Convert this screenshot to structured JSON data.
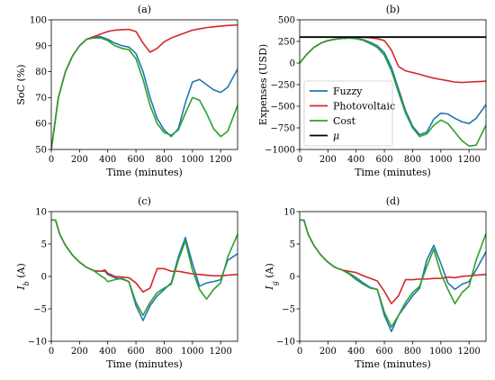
{
  "colors": {
    "Fuzzy": "#1f77b4",
    "Photovoltaic": "#d62728",
    "Cost": "#2ca02c",
    "mu": "#000000"
  },
  "chart_data": [
    {
      "type": "line",
      "title": "(a)",
      "xlabel": "Time (minutes)",
      "ylabel": "SoC (%)",
      "xlim": [
        0,
        1320
      ],
      "ylim": [
        50,
        100
      ],
      "xticks": [
        0,
        200,
        400,
        600,
        800,
        1000,
        1200
      ],
      "yticks": [
        50,
        60,
        70,
        80,
        90,
        100
      ],
      "grid": false,
      "series": [
        {
          "name": "Fuzzy",
          "x": [
            0,
            50,
            100,
            150,
            200,
            250,
            300,
            350,
            400,
            450,
            500,
            550,
            600,
            650,
            700,
            750,
            800,
            850,
            900,
            950,
            1000,
            1050,
            1100,
            1150,
            1200,
            1250,
            1320
          ],
          "y": [
            50,
            70,
            80,
            86,
            90,
            92.5,
            93.5,
            93.5,
            92.5,
            91,
            90,
            89.5,
            87,
            80,
            70,
            62,
            57.5,
            55,
            58,
            68,
            76,
            77,
            75,
            73,
            72,
            74,
            81
          ]
        },
        {
          "name": "Photovoltaic",
          "x": [
            0,
            50,
            100,
            150,
            200,
            250,
            300,
            350,
            400,
            450,
            500,
            550,
            600,
            650,
            700,
            750,
            800,
            850,
            900,
            950,
            1000,
            1050,
            1100,
            1150,
            1200,
            1250,
            1320
          ],
          "y": [
            50,
            70,
            80,
            86,
            90,
            92.5,
            93.5,
            94.5,
            95.5,
            96,
            96.2,
            96.3,
            95.5,
            91,
            87.5,
            89,
            91.5,
            93,
            94,
            95,
            96,
            96.5,
            97,
            97.3,
            97.6,
            97.8,
            98
          ]
        },
        {
          "name": "Cost",
          "x": [
            0,
            50,
            100,
            150,
            200,
            250,
            300,
            350,
            400,
            450,
            500,
            550,
            600,
            650,
            700,
            750,
            800,
            850,
            900,
            950,
            1000,
            1050,
            1100,
            1150,
            1200,
            1250,
            1320
          ],
          "y": [
            50,
            70,
            80,
            86,
            90,
            92.5,
            93,
            93,
            92,
            90,
            89,
            88.5,
            85,
            77,
            67,
            60,
            56.5,
            55.5,
            57.5,
            64,
            70,
            69,
            64,
            58,
            55,
            57,
            67
          ]
        }
      ]
    },
    {
      "type": "line",
      "title": "(b)",
      "xlabel": "Time (minutes)",
      "ylabel": "Expenses (USD)",
      "xlim": [
        0,
        1320
      ],
      "ylim": [
        -1000,
        500
      ],
      "xticks": [
        0,
        200,
        400,
        600,
        800,
        1000,
        1200
      ],
      "yticks": [
        -1000,
        -750,
        -500,
        -250,
        0,
        250,
        500
      ],
      "grid": false,
      "legend": {
        "placement": "center-left",
        "entries": [
          "Fuzzy",
          "Photovoltaic",
          "Cost",
          "μ"
        ]
      },
      "series": [
        {
          "name": "Fuzzy",
          "x": [
            0,
            50,
            100,
            150,
            200,
            250,
            300,
            350,
            400,
            450,
            500,
            550,
            600,
            650,
            700,
            750,
            800,
            850,
            900,
            950,
            1000,
            1050,
            1100,
            1150,
            1200,
            1250,
            1320
          ],
          "y": [
            0,
            100,
            180,
            230,
            260,
            275,
            285,
            290,
            285,
            270,
            240,
            200,
            120,
            -50,
            -300,
            -550,
            -730,
            -830,
            -800,
            -650,
            -580,
            -590,
            -640,
            -680,
            -700,
            -640,
            -480
          ]
        },
        {
          "name": "Photovoltaic",
          "x": [
            0,
            50,
            100,
            150,
            200,
            250,
            300,
            350,
            400,
            450,
            500,
            550,
            600,
            650,
            700,
            750,
            800,
            850,
            900,
            950,
            1000,
            1050,
            1100,
            1150,
            1200,
            1250,
            1320
          ],
          "y": [
            0,
            100,
            180,
            230,
            260,
            275,
            285,
            292,
            298,
            298,
            292,
            282,
            260,
            150,
            -40,
            -90,
            -110,
            -130,
            -155,
            -175,
            -190,
            -205,
            -220,
            -225,
            -220,
            -215,
            -210
          ]
        },
        {
          "name": "Cost",
          "x": [
            0,
            50,
            100,
            150,
            200,
            250,
            300,
            350,
            400,
            450,
            500,
            550,
            600,
            650,
            700,
            750,
            800,
            850,
            900,
            950,
            1000,
            1050,
            1100,
            1150,
            1200,
            1250,
            1320
          ],
          "y": [
            0,
            100,
            180,
            230,
            260,
            275,
            285,
            290,
            282,
            262,
            225,
            180,
            90,
            -90,
            -340,
            -580,
            -750,
            -850,
            -820,
            -720,
            -660,
            -700,
            -800,
            -900,
            -960,
            -950,
            -720
          ]
        },
        {
          "name": "μ",
          "x": [
            0,
            1320
          ],
          "y": [
            300,
            300
          ]
        }
      ]
    },
    {
      "type": "line",
      "title": "(c)",
      "xlabel": "Time (minutes)",
      "ylabel": "I_b (A)",
      "xlim": [
        0,
        1320
      ],
      "ylim": [
        -10,
        10
      ],
      "xticks": [
        0,
        200,
        400,
        600,
        800,
        1000,
        1200
      ],
      "yticks": [
        -10,
        -5,
        0,
        5,
        10
      ],
      "grid": false,
      "series": [
        {
          "name": "Fuzzy",
          "x": [
            0,
            30,
            60,
            100,
            150,
            200,
            250,
            300,
            350,
            380,
            400,
            450,
            500,
            550,
            600,
            650,
            700,
            750,
            800,
            850,
            900,
            950,
            1000,
            1050,
            1100,
            1150,
            1200,
            1250,
            1320
          ],
          "y": [
            8.7,
            8.7,
            6.5,
            4.8,
            3.3,
            2.2,
            1.4,
            0.9,
            0.8,
            0.8,
            0.3,
            -0.2,
            -0.4,
            -0.8,
            -4.5,
            -6.8,
            -4.5,
            -3,
            -2,
            -1,
            3,
            6,
            2,
            -1.5,
            -1,
            -0.8,
            -0.5,
            2.5,
            3.5
          ]
        },
        {
          "name": "Photovoltaic",
          "x": [
            0,
            30,
            60,
            100,
            150,
            200,
            250,
            300,
            350,
            380,
            400,
            450,
            500,
            550,
            600,
            650,
            700,
            750,
            800,
            850,
            900,
            950,
            1000,
            1050,
            1100,
            1150,
            1200,
            1250,
            1320
          ],
          "y": [
            8.7,
            8.7,
            6.5,
            4.8,
            3.3,
            2.2,
            1.4,
            0.9,
            0.8,
            1,
            0.5,
            0,
            -0.1,
            -0.2,
            -1,
            -2.4,
            -1.8,
            1.2,
            1.2,
            0.8,
            0.8,
            0.6,
            0.4,
            0.3,
            0.2,
            0.1,
            0.1,
            0.2,
            0.3
          ]
        },
        {
          "name": "Cost",
          "x": [
            0,
            30,
            60,
            100,
            150,
            200,
            250,
            300,
            350,
            380,
            400,
            450,
            500,
            550,
            600,
            650,
            700,
            750,
            800,
            850,
            900,
            950,
            1000,
            1050,
            1100,
            1150,
            1200,
            1250,
            1320
          ],
          "y": [
            8.7,
            8.7,
            6.5,
            4.8,
            3.3,
            2.2,
            1.4,
            0.9,
            0.1,
            -0.3,
            -0.8,
            -0.5,
            -0.3,
            -0.8,
            -4,
            -6,
            -4,
            -2.5,
            -1.8,
            -1.2,
            2.5,
            5.5,
            1,
            -2,
            -3.5,
            -2,
            -1,
            3,
            6.5
          ]
        }
      ]
    },
    {
      "type": "line",
      "title": "(d)",
      "xlabel": "Time (minutes)",
      "ylabel": "I_g (A)",
      "xlim": [
        0,
        1320
      ],
      "ylim": [
        -10,
        10
      ],
      "xticks": [
        0,
        200,
        400,
        600,
        800,
        1000,
        1200
      ],
      "yticks": [
        -10,
        -5,
        0,
        5,
        10
      ],
      "grid": false,
      "series": [
        {
          "name": "Fuzzy",
          "x": [
            0,
            30,
            60,
            100,
            150,
            200,
            250,
            300,
            350,
            400,
            450,
            500,
            550,
            600,
            650,
            700,
            750,
            800,
            850,
            900,
            950,
            1000,
            1050,
            1100,
            1150,
            1200,
            1250,
            1320
          ],
          "y": [
            8.7,
            8.7,
            6.5,
            4.8,
            3.3,
            2.2,
            1.4,
            1,
            0.5,
            -0.2,
            -1,
            -1.7,
            -2,
            -6,
            -8.5,
            -6,
            -4.5,
            -3,
            -1.8,
            2.5,
            4.8,
            2,
            -1,
            -2,
            -1.2,
            -0.8,
            1,
            3.8
          ]
        },
        {
          "name": "Photovoltaic",
          "x": [
            0,
            30,
            60,
            100,
            150,
            200,
            250,
            300,
            350,
            400,
            450,
            500,
            550,
            600,
            650,
            700,
            750,
            800,
            850,
            900,
            950,
            1000,
            1050,
            1100,
            1150,
            1200,
            1250,
            1320
          ],
          "y": [
            8.7,
            8.7,
            6.5,
            4.8,
            3.3,
            2.2,
            1.4,
            1,
            0.8,
            0.6,
            0.1,
            -0.3,
            -0.7,
            -2.3,
            -4.2,
            -3,
            -0.5,
            -0.5,
            -0.4,
            -0.4,
            -0.3,
            -0.3,
            -0.1,
            -0.2,
            0,
            0.1,
            0.2,
            0.3
          ]
        },
        {
          "name": "Cost",
          "x": [
            0,
            30,
            60,
            100,
            150,
            200,
            250,
            300,
            350,
            400,
            450,
            500,
            550,
            600,
            650,
            700,
            750,
            800,
            850,
            900,
            950,
            1000,
            1050,
            1100,
            1150,
            1200,
            1250,
            1320
          ],
          "y": [
            8.7,
            8.7,
            6.5,
            4.8,
            3.3,
            2.2,
            1.4,
            1,
            0.4,
            -0.5,
            -1.2,
            -1.8,
            -2,
            -5.5,
            -7.8,
            -6,
            -4,
            -2.5,
            -1.5,
            1.5,
            4.2,
            0.5,
            -2,
            -4.2,
            -2.5,
            -1.5,
            2.5,
            6.6
          ]
        }
      ]
    }
  ]
}
